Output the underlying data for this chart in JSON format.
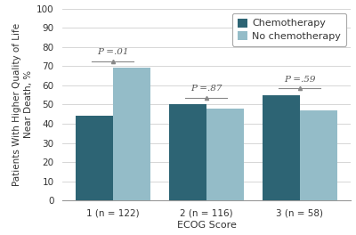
{
  "groups": [
    "1 (n = 122)",
    "2 (n = 116)",
    "3 (n = 58)"
  ],
  "chemo_values": [
    44,
    50,
    55
  ],
  "no_chemo_values": [
    69,
    48,
    47
  ],
  "chemo_color": "#2d6474",
  "no_chemo_color": "#94bcc8",
  "p_values": [
    "P =.01",
    "P =.87",
    "P =.59"
  ],
  "ylabel": "Patients With Higher Quality of Life\nNear Death, %",
  "xlabel": "ECOG Score",
  "ylim": [
    0,
    100
  ],
  "yticks": [
    0,
    10,
    20,
    30,
    40,
    50,
    60,
    70,
    80,
    90,
    100
  ],
  "legend_labels": [
    "Chemotherapy",
    "No chemotherapy"
  ],
  "bar_width": 0.32,
  "background_color": "#ffffff",
  "grid_color": "#d0d0d0",
  "tick_fontsize": 7.5,
  "label_fontsize": 8,
  "p_fontsize": 7.5,
  "legend_fontsize": 8
}
